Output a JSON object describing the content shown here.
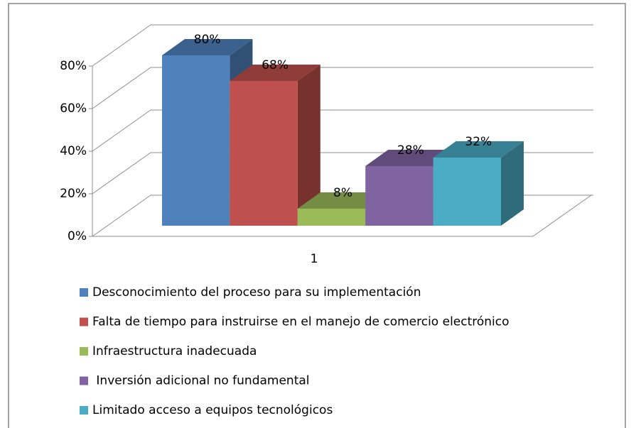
{
  "chart_data": {
    "type": "bar3d",
    "categories": [
      "1"
    ],
    "series": [
      {
        "name": "Desconocimiento del proceso para su implementación",
        "color": "#4f81bd",
        "values": [
          80
        ],
        "value_labels": [
          "80%"
        ]
      },
      {
        "name": "Falta de tiempo para instruirse en el manejo de comercio electrónico",
        "color": "#c0504d",
        "values": [
          68
        ],
        "value_labels": [
          "68%"
        ]
      },
      {
        "name": "Infraestructura inadecuada",
        "color": "#9bbb59",
        "values": [
          8
        ],
        "value_labels": [
          "8%"
        ]
      },
      {
        "name": " Inversión adicional no fundamental",
        "color": "#8064a2",
        "values": [
          28
        ],
        "value_labels": [
          "28%"
        ]
      },
      {
        "name": "Limitado acceso a equipos tecnológicos",
        "color": "#4bacc6",
        "values": [
          32
        ],
        "value_labels": [
          "32%"
        ]
      }
    ],
    "ylim": [
      0,
      80
    ],
    "yticks": [
      {
        "value": 0,
        "label": "0%"
      },
      {
        "value": 20,
        "label": "20%"
      },
      {
        "value": 40,
        "label": "40%"
      },
      {
        "value": 60,
        "label": "60%"
      },
      {
        "value": 80,
        "label": "80%"
      }
    ],
    "grid": true,
    "legend": "bottom"
  }
}
